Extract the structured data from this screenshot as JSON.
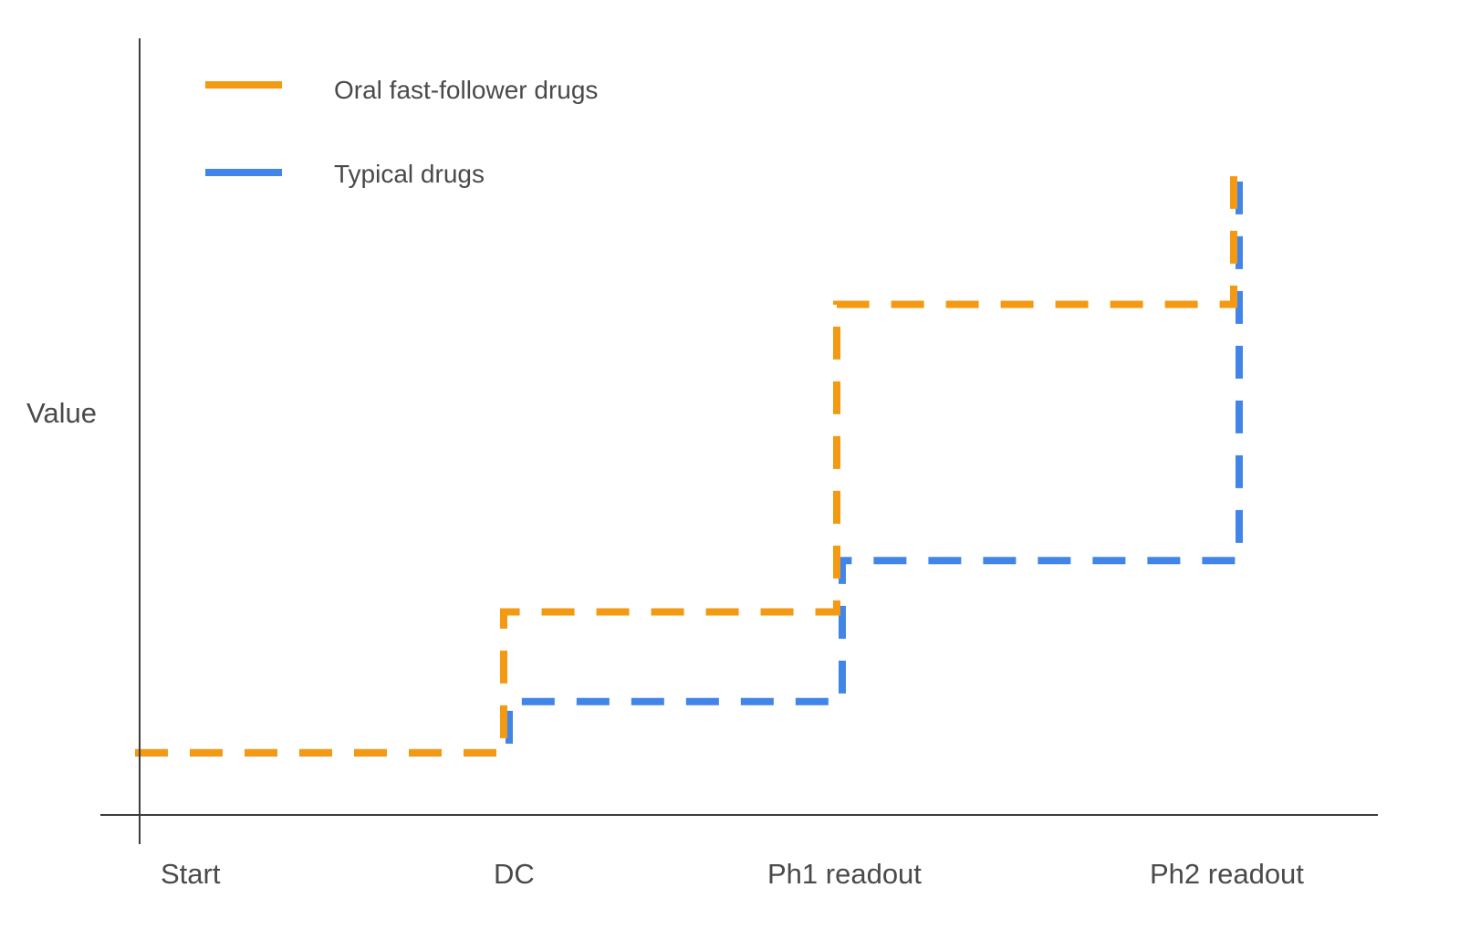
{
  "chart_data": {
    "type": "line",
    "step": true,
    "title": "",
    "xlabel": "",
    "ylabel": "Value",
    "categories": [
      "Start",
      "DC",
      "Ph1 readout",
      "Ph2 readout"
    ],
    "ylim": [
      0,
      100
    ],
    "grid": false,
    "legend_position": "top-left",
    "line_style": "dashed",
    "series": [
      {
        "name": "Oral fast-follower drugs",
        "color": "#f39a12",
        "values": [
          5,
          27,
          75,
          95
        ]
      },
      {
        "name": "Typical drugs",
        "color": "#4285e8",
        "values": [
          5,
          13,
          35,
          95
        ]
      }
    ]
  }
}
